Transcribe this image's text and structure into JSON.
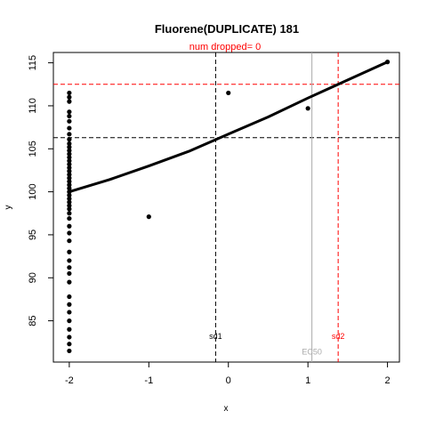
{
  "chart_data": {
    "type": "scatter",
    "title": "Fluorene(DUPLICATE) 181",
    "subtitle": "num dropped= 0",
    "xlabel": "x",
    "ylabel": "y",
    "xlim": [
      -2.2,
      2.15
    ],
    "ylim": [
      80.2,
      116.2
    ],
    "x_ticks": [
      -2,
      -1,
      0,
      1,
      2
    ],
    "y_ticks": [
      85,
      90,
      95,
      100,
      105,
      110,
      115
    ],
    "grid": false,
    "colors": {
      "sd1": "#000000",
      "sd2": "#ff0000",
      "ec50": "#aaaaaa",
      "points": "#000000",
      "fit": "#000000"
    },
    "points": [
      [
        -2,
        81.5
      ],
      [
        -2,
        82.3
      ],
      [
        -2,
        83.1
      ],
      [
        -2,
        84.0
      ],
      [
        -2,
        85.0
      ],
      [
        -2,
        86.0
      ],
      [
        -2,
        86.9
      ],
      [
        -2,
        87.8
      ],
      [
        -2,
        89.5
      ],
      [
        -2,
        90.5
      ],
      [
        -2,
        91.2
      ],
      [
        -2,
        92.0
      ],
      [
        -2,
        93.0
      ],
      [
        -2,
        94.3
      ],
      [
        -2,
        95.2
      ],
      [
        -2,
        96.0
      ],
      [
        -2,
        96.9
      ],
      [
        -2,
        97.5
      ],
      [
        -2,
        98.0
      ],
      [
        -2,
        98.4
      ],
      [
        -2,
        98.8
      ],
      [
        -2,
        99.2
      ],
      [
        -2,
        99.6
      ],
      [
        -2,
        100.0
      ],
      [
        -2,
        100.4
      ],
      [
        -2,
        100.8
      ],
      [
        -2,
        101.2
      ],
      [
        -2,
        101.6
      ],
      [
        -2,
        102.0
      ],
      [
        -2,
        102.4
      ],
      [
        -2,
        102.8
      ],
      [
        -2,
        103.2
      ],
      [
        -2,
        103.6
      ],
      [
        -2,
        104.0
      ],
      [
        -2,
        104.4
      ],
      [
        -2,
        104.8
      ],
      [
        -2,
        105.2
      ],
      [
        -2,
        105.6
      ],
      [
        -2,
        106.1
      ],
      [
        -2,
        106.7
      ],
      [
        -2,
        107.4
      ],
      [
        -2,
        108.2
      ],
      [
        -2,
        108.8
      ],
      [
        -2,
        109.3
      ],
      [
        -2,
        110.5
      ],
      [
        -2,
        111.0
      ],
      [
        -2,
        111.5
      ],
      [
        -1,
        97.1
      ],
      [
        0,
        111.5
      ],
      [
        1,
        109.7
      ],
      [
        2,
        115.1
      ]
    ],
    "fit_curve": [
      [
        -2,
        100.0
      ],
      [
        -1.5,
        101.4
      ],
      [
        -1.0,
        103.0
      ],
      [
        -0.5,
        104.7
      ],
      [
        0.0,
        106.7
      ],
      [
        0.5,
        108.7
      ],
      [
        1.0,
        110.9
      ],
      [
        1.5,
        113.0
      ],
      [
        2.0,
        115.1
      ]
    ],
    "h_lines": [
      {
        "name": "sd1-level",
        "y": 106.3,
        "color": "#000000",
        "style": "dashed"
      },
      {
        "name": "sd2-level",
        "y": 112.5,
        "color": "#ff0000",
        "style": "dashed"
      }
    ],
    "v_lines": [
      {
        "name": "sd1",
        "label": "sd1",
        "x": -0.16,
        "color": "#000000",
        "style": "dashed",
        "label_y": 82.9
      },
      {
        "name": "EC50",
        "label": "EC50",
        "x": 1.05,
        "color": "#aaaaaa",
        "style": "solid",
        "label_y": 81.1
      },
      {
        "name": "sd2",
        "label": "sd2",
        "x": 1.38,
        "color": "#ff0000",
        "style": "dashed",
        "label_y": 82.9
      }
    ]
  }
}
